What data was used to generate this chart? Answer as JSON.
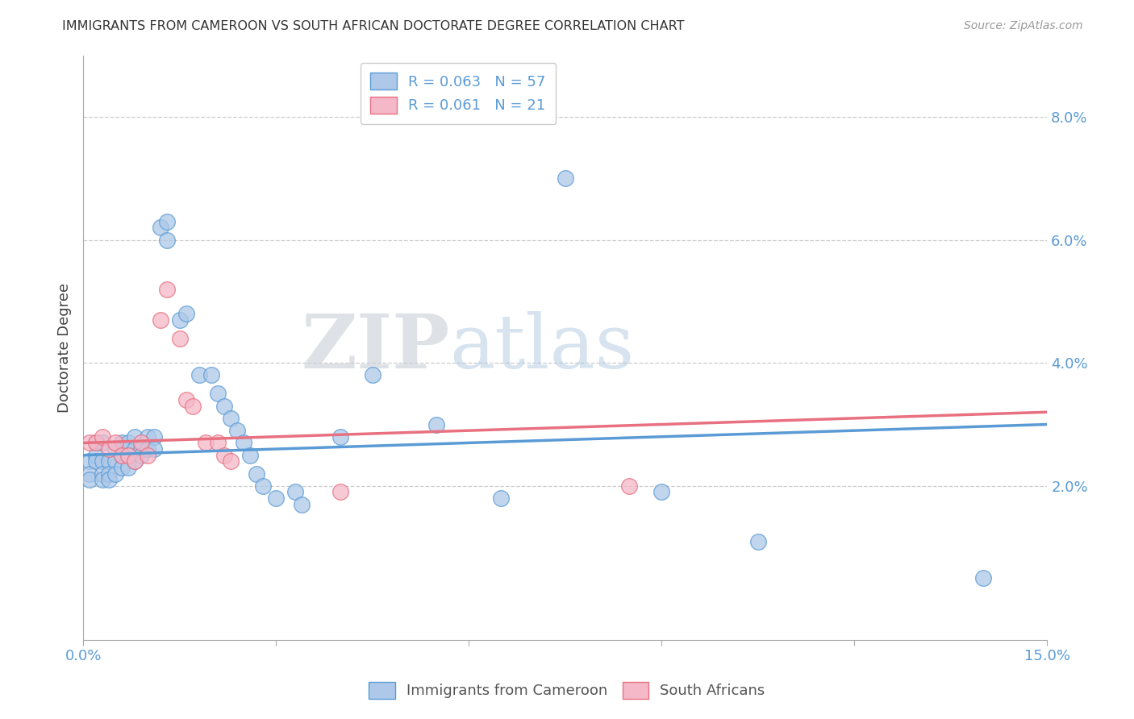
{
  "title": "IMMIGRANTS FROM CAMEROON VS SOUTH AFRICAN DOCTORATE DEGREE CORRELATION CHART",
  "source": "Source: ZipAtlas.com",
  "ylabel": "Doctorate Degree",
  "right_yticks": [
    "8.0%",
    "6.0%",
    "4.0%",
    "2.0%"
  ],
  "right_ytick_vals": [
    0.08,
    0.06,
    0.04,
    0.02
  ],
  "xlim": [
    0.0,
    0.15
  ],
  "ylim": [
    -0.005,
    0.09
  ],
  "legend_line1": "R = 0.063   N = 57",
  "legend_line2": "R = 0.061   N = 21",
  "series1_color": "#adc8e8",
  "series2_color": "#f4b8c8",
  "trendline1_color": "#5b9bd5",
  "trendline2_color": "#e87080",
  "series1_x": [
    0.001,
    0.001,
    0.001,
    0.002,
    0.002,
    0.002,
    0.003,
    0.003,
    0.003,
    0.003,
    0.004,
    0.004,
    0.004,
    0.005,
    0.005,
    0.005,
    0.006,
    0.006,
    0.006,
    0.007,
    0.007,
    0.007,
    0.008,
    0.008,
    0.008,
    0.009,
    0.009,
    0.01,
    0.01,
    0.011,
    0.011,
    0.012,
    0.013,
    0.013,
    0.015,
    0.016,
    0.018,
    0.02,
    0.021,
    0.022,
    0.023,
    0.024,
    0.025,
    0.026,
    0.027,
    0.028,
    0.03,
    0.033,
    0.034,
    0.04,
    0.045,
    0.055,
    0.065,
    0.075,
    0.09,
    0.105,
    0.14
  ],
  "series1_y": [
    0.024,
    0.022,
    0.021,
    0.027,
    0.025,
    0.024,
    0.027,
    0.024,
    0.022,
    0.021,
    0.024,
    0.022,
    0.021,
    0.026,
    0.024,
    0.022,
    0.027,
    0.025,
    0.023,
    0.027,
    0.025,
    0.023,
    0.028,
    0.026,
    0.024,
    0.026,
    0.025,
    0.028,
    0.026,
    0.028,
    0.026,
    0.062,
    0.063,
    0.06,
    0.047,
    0.048,
    0.038,
    0.038,
    0.035,
    0.033,
    0.031,
    0.029,
    0.027,
    0.025,
    0.022,
    0.02,
    0.018,
    0.019,
    0.017,
    0.028,
    0.038,
    0.03,
    0.018,
    0.07,
    0.019,
    0.011,
    0.005
  ],
  "series2_x": [
    0.001,
    0.002,
    0.003,
    0.004,
    0.005,
    0.006,
    0.007,
    0.008,
    0.009,
    0.01,
    0.012,
    0.013,
    0.015,
    0.016,
    0.017,
    0.019,
    0.021,
    0.022,
    0.023,
    0.04,
    0.085
  ],
  "series2_y": [
    0.027,
    0.027,
    0.028,
    0.026,
    0.027,
    0.025,
    0.025,
    0.024,
    0.027,
    0.025,
    0.047,
    0.052,
    0.044,
    0.034,
    0.033,
    0.027,
    0.027,
    0.025,
    0.024,
    0.019,
    0.02
  ],
  "trendline1_x": [
    0.0,
    0.15
  ],
  "trendline1_y": [
    0.025,
    0.03
  ],
  "trendline2_x": [
    0.0,
    0.15
  ],
  "trendline2_y": [
    0.027,
    0.032
  ]
}
